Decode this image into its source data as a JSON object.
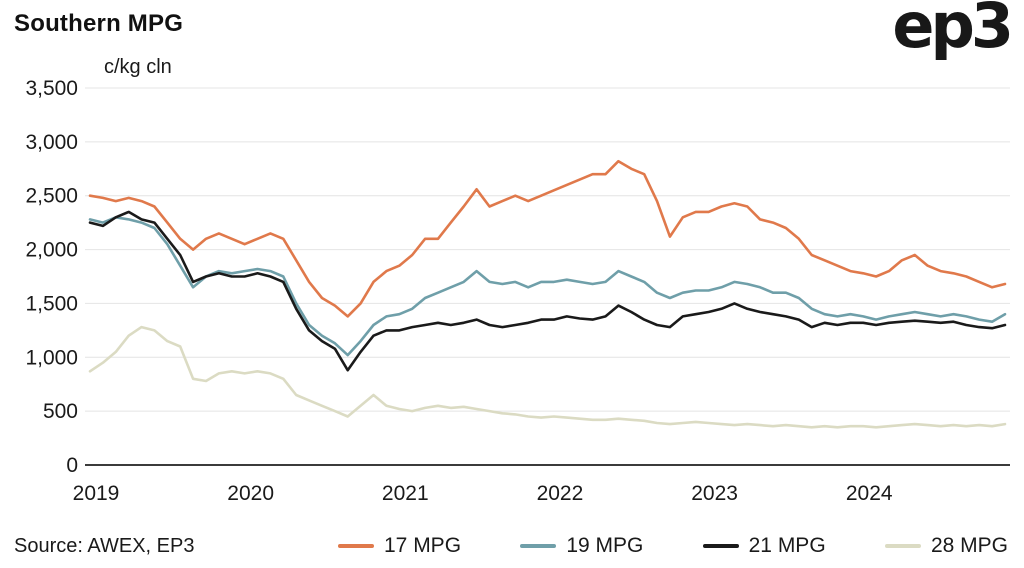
{
  "header": {
    "title": "Southern MPG",
    "logo": "ep3"
  },
  "footer": {
    "source": "Source: AWEX, EP3"
  },
  "chart_data": {
    "type": "line",
    "title": "Southern MPG",
    "unit_label": "c/kg cln",
    "x_start": "2019-01",
    "x_end": "2024-12",
    "sampling": "monthly",
    "x_tick_labels": [
      "2019",
      "2020",
      "2021",
      "2022",
      "2023",
      "2024"
    ],
    "y_ticks": [
      0,
      500,
      1000,
      1500,
      2000,
      2500,
      3000,
      3500
    ],
    "ylim": [
      0,
      3500
    ],
    "grid": "horizontal",
    "legend_position": "bottom",
    "colors": {
      "grid": "#e4e4e4",
      "zero_axis": "#3b3b3b",
      "text": "#1a1a1a"
    },
    "series": [
      {
        "name": "17 MPG",
        "color": "#E0794B",
        "values": [
          2500,
          2480,
          2450,
          2480,
          2450,
          2400,
          2250,
          2100,
          2000,
          2100,
          2150,
          2100,
          2050,
          2100,
          2150,
          2100,
          1900,
          1700,
          1550,
          1480,
          1380,
          1500,
          1700,
          1800,
          1850,
          1950,
          2100,
          2100,
          2250,
          2400,
          2560,
          2400,
          2450,
          2500,
          2450,
          2500,
          2550,
          2600,
          2650,
          2700,
          2700,
          2820,
          2750,
          2700,
          2450,
          2120,
          2300,
          2350,
          2350,
          2400,
          2430,
          2400,
          2280,
          2250,
          2200,
          2100,
          1950,
          1900,
          1850,
          1800,
          1780,
          1750,
          1800,
          1900,
          1950,
          1850,
          1800,
          1780,
          1750,
          1700,
          1650,
          1680
        ]
      },
      {
        "name": "19 MPG",
        "color": "#6F9FA9",
        "values": [
          2280,
          2250,
          2300,
          2280,
          2250,
          2200,
          2050,
          1850,
          1650,
          1750,
          1800,
          1780,
          1800,
          1820,
          1800,
          1750,
          1500,
          1300,
          1200,
          1130,
          1020,
          1150,
          1300,
          1380,
          1400,
          1450,
          1550,
          1600,
          1650,
          1700,
          1800,
          1700,
          1680,
          1700,
          1650,
          1700,
          1700,
          1720,
          1700,
          1680,
          1700,
          1800,
          1750,
          1700,
          1600,
          1550,
          1600,
          1620,
          1620,
          1650,
          1700,
          1680,
          1650,
          1600,
          1600,
          1550,
          1450,
          1400,
          1380,
          1400,
          1380,
          1350,
          1380,
          1400,
          1420,
          1400,
          1380,
          1400,
          1380,
          1350,
          1330,
          1400
        ]
      },
      {
        "name": "21 MPG",
        "color": "#1A1A1A",
        "values": [
          2250,
          2220,
          2300,
          2350,
          2280,
          2250,
          2100,
          1950,
          1700,
          1750,
          1780,
          1750,
          1750,
          1780,
          1750,
          1700,
          1450,
          1250,
          1150,
          1080,
          880,
          1050,
          1200,
          1250,
          1250,
          1280,
          1300,
          1320,
          1300,
          1320,
          1350,
          1300,
          1280,
          1300,
          1320,
          1350,
          1350,
          1380,
          1360,
          1350,
          1380,
          1480,
          1420,
          1350,
          1300,
          1280,
          1380,
          1400,
          1420,
          1450,
          1500,
          1450,
          1420,
          1400,
          1380,
          1350,
          1280,
          1320,
          1300,
          1320,
          1320,
          1300,
          1320,
          1330,
          1340,
          1330,
          1320,
          1330,
          1300,
          1280,
          1270,
          1300
        ]
      },
      {
        "name": "28 MPG",
        "color": "#DBDBC3",
        "values": [
          870,
          950,
          1050,
          1200,
          1280,
          1250,
          1150,
          1100,
          800,
          780,
          850,
          870,
          850,
          870,
          850,
          800,
          650,
          600,
          550,
          500,
          450,
          550,
          650,
          550,
          520,
          500,
          530,
          550,
          530,
          540,
          520,
          500,
          480,
          470,
          450,
          440,
          450,
          440,
          430,
          420,
          420,
          430,
          420,
          410,
          390,
          380,
          390,
          400,
          390,
          380,
          370,
          380,
          370,
          360,
          370,
          360,
          350,
          360,
          350,
          360,
          360,
          350,
          360,
          370,
          380,
          370,
          360,
          370,
          360,
          370,
          360,
          380
        ]
      }
    ]
  }
}
